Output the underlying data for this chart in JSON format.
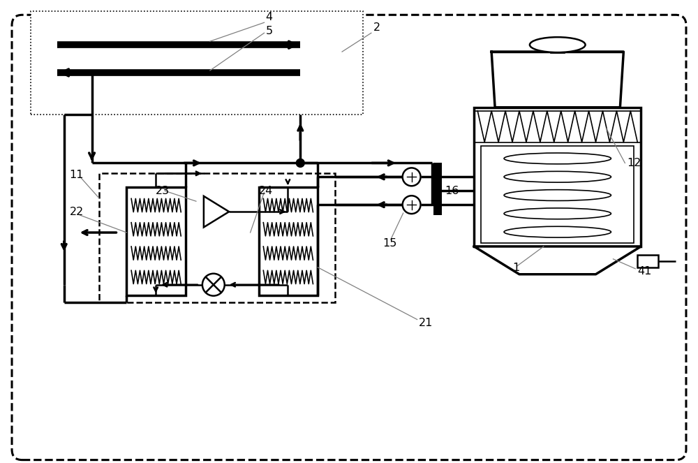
{
  "fig_width": 10.0,
  "fig_height": 6.63,
  "bg_color": "#ffffff"
}
